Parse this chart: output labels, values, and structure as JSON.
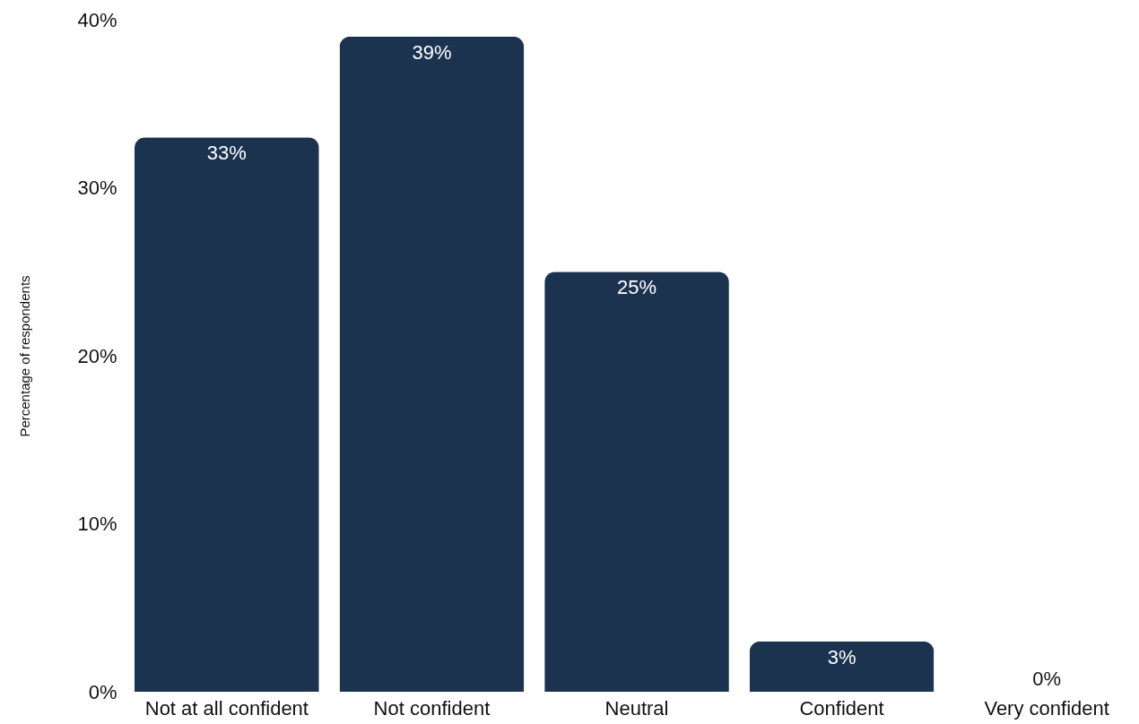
{
  "chart_data": {
    "type": "bar",
    "ylabel": "Percentage of respondents",
    "categories": [
      "Not at all confident",
      "Not confident",
      "Neutral",
      "Confident",
      "Very confident"
    ],
    "values": [
      33,
      39,
      25,
      3,
      0
    ],
    "value_labels": [
      "33%",
      "39%",
      "25%",
      "3%",
      "0%"
    ],
    "color": "#1c3350",
    "ylim": [
      0,
      40
    ],
    "yticks": [
      {
        "value": 0,
        "label": "0%"
      },
      {
        "value": 10,
        "label": "10%"
      },
      {
        "value": 20,
        "label": "20%"
      },
      {
        "value": 30,
        "label": "30%"
      },
      {
        "value": 40,
        "label": "40%"
      }
    ]
  }
}
